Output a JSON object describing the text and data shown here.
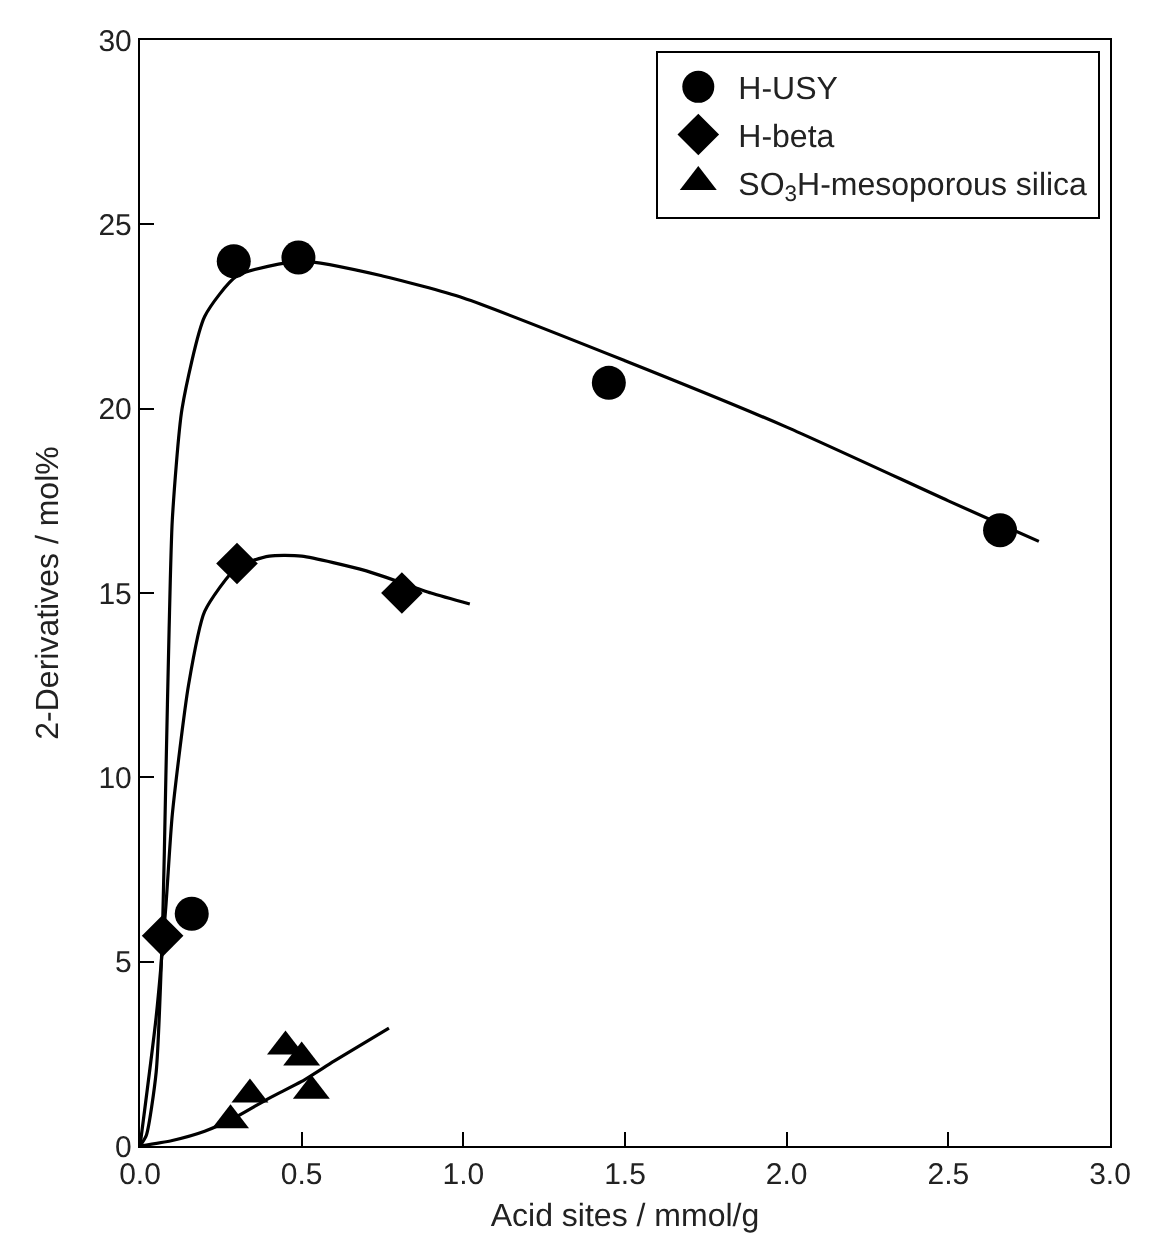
{
  "chart_data": {
    "type": "scatter",
    "xlabel": "Acid sites / mmol/g",
    "ylabel": "2-Derivatives / mol%",
    "xlim": [
      0,
      3.0
    ],
    "xticks": [
      {
        "value": 0,
        "label": "0.0"
      },
      0.5,
      {
        "value": 1,
        "label": "1.0"
      },
      1.5,
      {
        "value": 2,
        "label": "2.0"
      },
      2.5,
      {
        "value": 3,
        "label": "3.0"
      }
    ],
    "ylim": [
      0,
      30
    ],
    "yticks": [
      0,
      5,
      10,
      15,
      20,
      25,
      30
    ],
    "legend": "top right",
    "series": [
      {
        "name": "H-USY",
        "marker": "circle",
        "color": "#000000",
        "x": [
          0.16,
          0.29,
          0.49,
          1.45,
          2.66
        ],
        "values": [
          6.3,
          24.0,
          24.1,
          20.7,
          16.7
        ]
      },
      {
        "name": "H-beta",
        "marker": "diamond",
        "color": "#000000",
        "x": [
          0.07,
          0.3,
          0.81
        ],
        "values": [
          5.7,
          15.8,
          15.0
        ]
      },
      {
        "name": "SO$_{3}$H-mesoporous silica",
        "marker": "triangle",
        "color": "#000000",
        "x": [
          0.28,
          0.34,
          0.45,
          0.5,
          0.53
        ],
        "values": [
          0.7,
          1.4,
          2.7,
          2.4,
          1.5
        ]
      },
      {
        "type": "line",
        "color": "#000000",
        "marker": "none",
        "x": [
          0,
          0.02,
          0.05,
          0.07,
          0.08,
          0.09,
          0.1,
          0.13,
          0.2,
          0.3,
          0.5,
          0.75,
          1.0,
          1.5,
          2.0,
          2.5,
          2.78
        ],
        "values": [
          0,
          0.3,
          2,
          6,
          10,
          14,
          17,
          20,
          22.5,
          23.6,
          24.0,
          23.6,
          23.0,
          21.3,
          19.5,
          17.5,
          16.4
        ]
      },
      {
        "type": "line",
        "color": "#000000",
        "marker": "none",
        "x": [
          0,
          0.05,
          0.08,
          0.1,
          0.15,
          0.2,
          0.3,
          0.4,
          0.5,
          0.7,
          0.9,
          1.02
        ],
        "values": [
          0,
          3.5,
          6.5,
          9,
          12.5,
          14.5,
          15.7,
          16.0,
          16.0,
          15.6,
          15.0,
          14.7
        ]
      },
      {
        "type": "line",
        "color": "#000000",
        "marker": "none",
        "x": [
          0,
          0.1,
          0.2,
          0.3,
          0.4,
          0.5,
          0.6,
          0.77
        ],
        "values": [
          0,
          0.15,
          0.4,
          0.8,
          1.3,
          1.75,
          2.3,
          3.2
        ]
      }
    ]
  }
}
